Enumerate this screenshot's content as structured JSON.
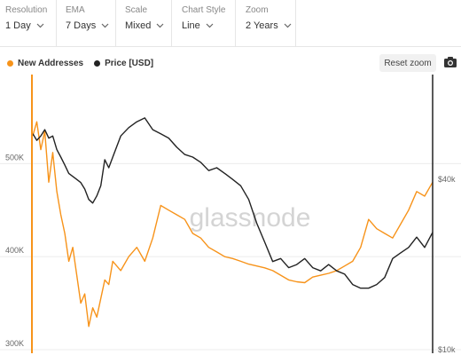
{
  "controls": {
    "resolution": {
      "label": "Resolution",
      "value": "1 Day"
    },
    "ema": {
      "label": "EMA",
      "value": "7 Days"
    },
    "scale": {
      "label": "Scale",
      "value": "Mixed"
    },
    "chart_style": {
      "label": "Chart Style",
      "value": "Line"
    },
    "zoom": {
      "label": "Zoom",
      "value": "2 Years"
    }
  },
  "reset_label": "Reset zoom",
  "watermark": "glassnode",
  "colors": {
    "addresses": "#f7931a",
    "price": "#222222",
    "grid": "#ececec"
  },
  "chart_data": {
    "type": "line",
    "x_range": [
      0,
      100
    ],
    "left_axis": {
      "ticks": [
        "300K",
        "400K",
        "500K"
      ],
      "tick_values": [
        300000,
        400000,
        500000
      ],
      "ylim": [
        300000,
        590000
      ]
    },
    "right_axis": {
      "ticks": [
        "$10k",
        "$40k"
      ],
      "tick_values": [
        10000,
        40000
      ],
      "scale": "log",
      "ylim": [
        10000,
        90000
      ]
    },
    "series": [
      {
        "name": "New Addresses",
        "axis": "left",
        "color": "#f7931a",
        "x": [
          0,
          1,
          2,
          3,
          4,
          5,
          6,
          7,
          8,
          9,
          10,
          11,
          12,
          13,
          14,
          15,
          16,
          17,
          18,
          19,
          20,
          22,
          24,
          26,
          28,
          30,
          32,
          34,
          36,
          38,
          40,
          42,
          44,
          46,
          48,
          50,
          52,
          54,
          56,
          58,
          60,
          62,
          64,
          66,
          68,
          70,
          72,
          74,
          76,
          78,
          80,
          82,
          84,
          86,
          88,
          90,
          92,
          94,
          96,
          98,
          100
        ],
        "values": [
          530000,
          545000,
          515000,
          535000,
          480000,
          512000,
          470000,
          445000,
          425000,
          395000,
          410000,
          380000,
          350000,
          360000,
          325000,
          345000,
          335000,
          355000,
          375000,
          370000,
          395000,
          385000,
          400000,
          410000,
          395000,
          420000,
          455000,
          450000,
          445000,
          440000,
          425000,
          420000,
          410000,
          405000,
          400000,
          398000,
          395000,
          392000,
          390000,
          388000,
          385000,
          380000,
          375000,
          373000,
          372000,
          378000,
          380000,
          382000,
          385000,
          390000,
          395000,
          410000,
          440000,
          430000,
          425000,
          420000,
          435000,
          450000,
          470000,
          465000,
          480000
        ]
      },
      {
        "name": "Price [USD]",
        "axis": "right",
        "color": "#222222",
        "x": [
          0,
          1,
          2,
          3,
          4,
          5,
          6,
          7,
          8,
          9,
          10,
          11,
          12,
          13,
          14,
          15,
          16,
          17,
          18,
          19,
          20,
          22,
          24,
          26,
          28,
          30,
          32,
          34,
          36,
          38,
          40,
          42,
          44,
          46,
          48,
          50,
          52,
          54,
          56,
          58,
          60,
          62,
          64,
          66,
          68,
          70,
          72,
          74,
          76,
          78,
          80,
          82,
          84,
          86,
          88,
          90,
          92,
          94,
          96,
          98,
          100
        ],
        "values": [
          58000,
          55000,
          57000,
          60000,
          56000,
          57000,
          51000,
          48000,
          45000,
          42000,
          41000,
          40000,
          39000,
          37000,
          34000,
          33000,
          35000,
          38000,
          47000,
          44000,
          48000,
          57000,
          61000,
          64000,
          66000,
          60000,
          58000,
          56000,
          52000,
          49000,
          48000,
          46000,
          43000,
          44000,
          42000,
          40000,
          38000,
          34000,
          28000,
          24000,
          20500,
          21000,
          19500,
          20000,
          21000,
          19500,
          19000,
          20000,
          19000,
          18500,
          17000,
          16500,
          16500,
          17000,
          18000,
          21000,
          22000,
          23000,
          25000,
          23000,
          26000
        ]
      }
    ]
  }
}
